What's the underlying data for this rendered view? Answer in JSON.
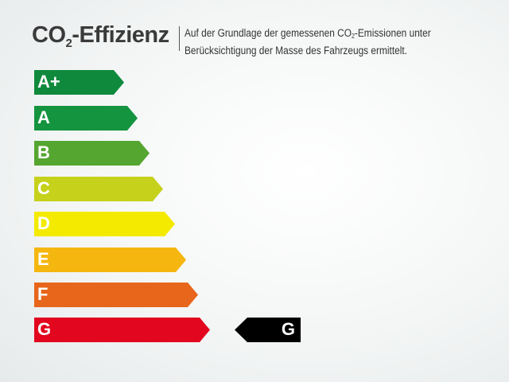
{
  "header": {
    "title_main": "CO",
    "title_sub": "2",
    "title_rest": "-Effizienz",
    "desc_line1_a": "Auf der Grundlage der gemessenen CO",
    "desc_line1_sub": "2",
    "desc_line1_b": "-Emissionen unter",
    "desc_line2": "Berücksichtigung der Masse des Fahrzeugs ermittelt."
  },
  "scale": [
    {
      "label": "A+",
      "color": "#0f8a3c"
    },
    {
      "label": "A",
      "color": "#14943f"
    },
    {
      "label": "B",
      "color": "#55a630"
    },
    {
      "label": "C",
      "color": "#c6d11c"
    },
    {
      "label": "D",
      "color": "#f4ea00"
    },
    {
      "label": "E",
      "color": "#f5b70f"
    },
    {
      "label": "F",
      "color": "#e7661b"
    },
    {
      "label": "G",
      "color": "#e2061e"
    }
  ],
  "rating": {
    "label": "G",
    "color": "#000000"
  }
}
